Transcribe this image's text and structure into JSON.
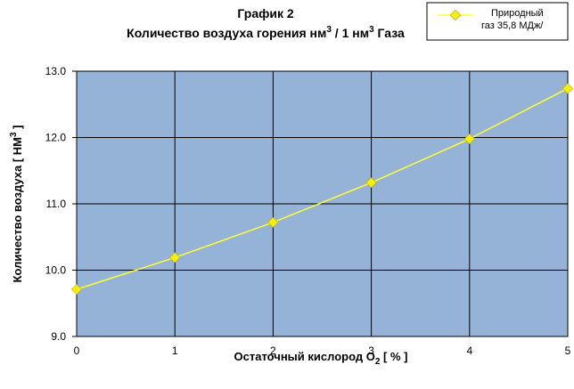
{
  "chart_data": {
    "type": "line",
    "title": "График 2",
    "subtitle_main": "Количество воздуха горения нм",
    "subtitle_sup1": "3",
    "subtitle_mid": " / 1 нм",
    "subtitle_sup2": "3",
    "subtitle_end": " Газа",
    "xlabel_main": "Остаточный кислород O",
    "xlabel_sub": "2",
    "xlabel_end": " [ % ]",
    "ylabel_main": "Количество воздуха [ НМ",
    "ylabel_sup": "3",
    "ylabel_end": " ]",
    "x_ticks": [
      "0",
      "1",
      "2",
      "3",
      "4",
      "5"
    ],
    "y_ticks": [
      "9.0",
      "10.0",
      "11.0",
      "12.0",
      "13.0"
    ],
    "xlim": [
      0,
      5
    ],
    "ylim": [
      9,
      13
    ],
    "grid": true,
    "legend_position": "top-right",
    "colors": {
      "plot_bg": "#95b3d7",
      "line": "#ffff33",
      "marker": "#ffee00",
      "grid": "#000000"
    },
    "series": [
      {
        "name_line1": "Природный",
        "name_line2": "газ 35,8 МДж/",
        "x": [
          0,
          1,
          2,
          3,
          4,
          5
        ],
        "y": [
          9.71,
          10.19,
          10.72,
          11.32,
          11.98,
          12.74
        ]
      }
    ]
  }
}
